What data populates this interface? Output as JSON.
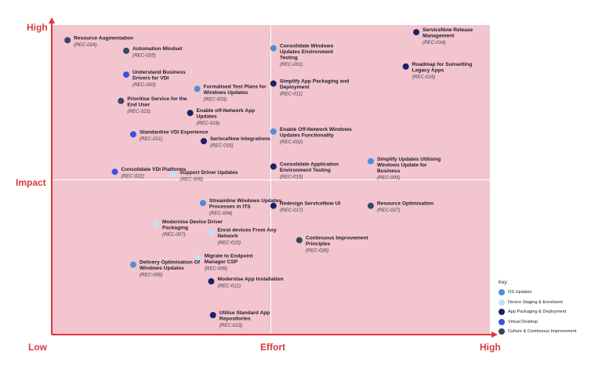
{
  "chart_data": {
    "type": "scatter",
    "title": "",
    "xlabel": "Effort",
    "ylabel": "Impact",
    "x_ends": [
      "Low",
      "High"
    ],
    "y_ends": [
      "Low",
      "High"
    ],
    "xlim": [
      0,
      100
    ],
    "ylim": [
      0,
      100
    ],
    "quadrants": 4,
    "legend_title": "Key:",
    "legend_position": "bottom-right",
    "categories": [
      {
        "id": "os",
        "name": "OS Updates",
        "color": "#4a8fd9"
      },
      {
        "id": "dev",
        "name": "Device Staging & Enrolment",
        "color": "#c5dff7"
      },
      {
        "id": "app",
        "name": "App Packaging & Deployment",
        "color": "#172366"
      },
      {
        "id": "vd",
        "name": "Virtual Desktop",
        "color": "#3c4ee6"
      },
      {
        "id": "cul",
        "name": "Culture & Continuous Improvement",
        "color": "#34485e"
      }
    ],
    "points": [
      {
        "title": "Resource Augmentation",
        "ref": "(REC-024)",
        "cat": "cul",
        "x": 3.6,
        "y": 95.1
      },
      {
        "title": "Automation Mindset",
        "ref": "(REC-025)",
        "cat": "cul",
        "x": 17.0,
        "y": 91.7
      },
      {
        "title": "Understand Business Drivers for VDI",
        "ref": "(REC-020)",
        "cat": "vd",
        "x": 17.0,
        "y": 84.0
      },
      {
        "title": "Formalised Test Plans for Windows Updates",
        "ref": "(REC-003)",
        "cat": "os",
        "x": 33.2,
        "y": 79.4
      },
      {
        "title": "Prioritise Service for the End User",
        "ref": "(REC-023)",
        "cat": "cul",
        "x": 15.8,
        "y": 75.5
      },
      {
        "title": "Enable off-Network App Updates",
        "ref": "(REC-018)",
        "cat": "app",
        "x": 31.6,
        "y": 71.6
      },
      {
        "title": "Standardise VDI Experience",
        "ref": "(REC-021)",
        "cat": "vd",
        "x": 18.6,
        "y": 64.7
      },
      {
        "title": "SerivceNow Integrations",
        "ref": "(REC-016)",
        "cat": "app",
        "x": 34.7,
        "y": 62.5
      },
      {
        "title": "Consolidate VDI Platforms",
        "ref": "(REC-022)",
        "cat": "vd",
        "x": 14.4,
        "y": 52.6
      },
      {
        "title": "Support Driver Updates",
        "ref": "(REC-008)",
        "cat": "dev",
        "x": 27.8,
        "y": 51.7
      },
      {
        "title": "Consolidate Windows Updates Environment Testing",
        "ref": "(REC-001)",
        "cat": "os",
        "x": 50.6,
        "y": 92.5
      },
      {
        "title": "Simplify App Packaging and Deployment",
        "ref": "(REC-011)",
        "cat": "app",
        "x": 50.6,
        "y": 81.1
      },
      {
        "title": "Enable Off-Network Windows Updates Functionality",
        "ref": "(REC-002)",
        "cat": "os",
        "x": 50.6,
        "y": 65.6
      },
      {
        "title": "Consolidate Application Environment Testing",
        "ref": "(REC-015)",
        "cat": "app",
        "x": 50.6,
        "y": 54.3
      },
      {
        "title": "ServiceNow Release Management",
        "ref": "(REC-014)",
        "cat": "app",
        "x": 83.2,
        "y": 97.7
      },
      {
        "title": "Roadmap for Sunsetting Legacy Apps",
        "ref": "(REC-019)",
        "cat": "app",
        "x": 80.8,
        "y": 86.6
      },
      {
        "title": "Simplify Updates Utilising Windows Update for Business",
        "ref": "(REC-005)",
        "cat": "os",
        "x": 72.8,
        "y": 56.0
      },
      {
        "title": "Streamline Windows Updates Processes in ITS",
        "ref": "(REC-004)",
        "cat": "os",
        "x": 34.5,
        "y": 42.5
      },
      {
        "title": "Modernise Device Driver Packaging",
        "ref": "(REC-007)",
        "cat": "dev",
        "x": 23.8,
        "y": 35.7
      },
      {
        "title": "Enrol devices From Any Network",
        "ref": "(REC-010)",
        "cat": "dev",
        "x": 36.4,
        "y": 33.0
      },
      {
        "title": "Migrate to Endpoint Manager CSP",
        "ref": "(REC-009)",
        "cat": "dev",
        "x": 33.4,
        "y": 24.7
      },
      {
        "title": "Delivery Optimisation Of Windows Updates",
        "ref": "(REC-006)",
        "cat": "os",
        "x": 18.6,
        "y": 22.6
      },
      {
        "title": "Modernise App Installation",
        "ref": "(REC-012)",
        "cat": "app",
        "x": 36.4,
        "y": 17.2
      },
      {
        "title": "Utilise Standard App Repositories",
        "ref": "(REC-013)",
        "cat": "app",
        "x": 36.8,
        "y": 6.3
      },
      {
        "title": "Redesign ServiceNow UI",
        "ref": "(REC-017)",
        "cat": "app",
        "x": 50.6,
        "y": 41.6
      },
      {
        "title": "Resource Optimisation",
        "ref": "(REC-027)",
        "cat": "cul",
        "x": 72.8,
        "y": 41.6
      },
      {
        "title": "Continuous Improvement Principles",
        "ref": "(REC-026)",
        "cat": "cul",
        "x": 56.5,
        "y": 30.5
      }
    ]
  }
}
